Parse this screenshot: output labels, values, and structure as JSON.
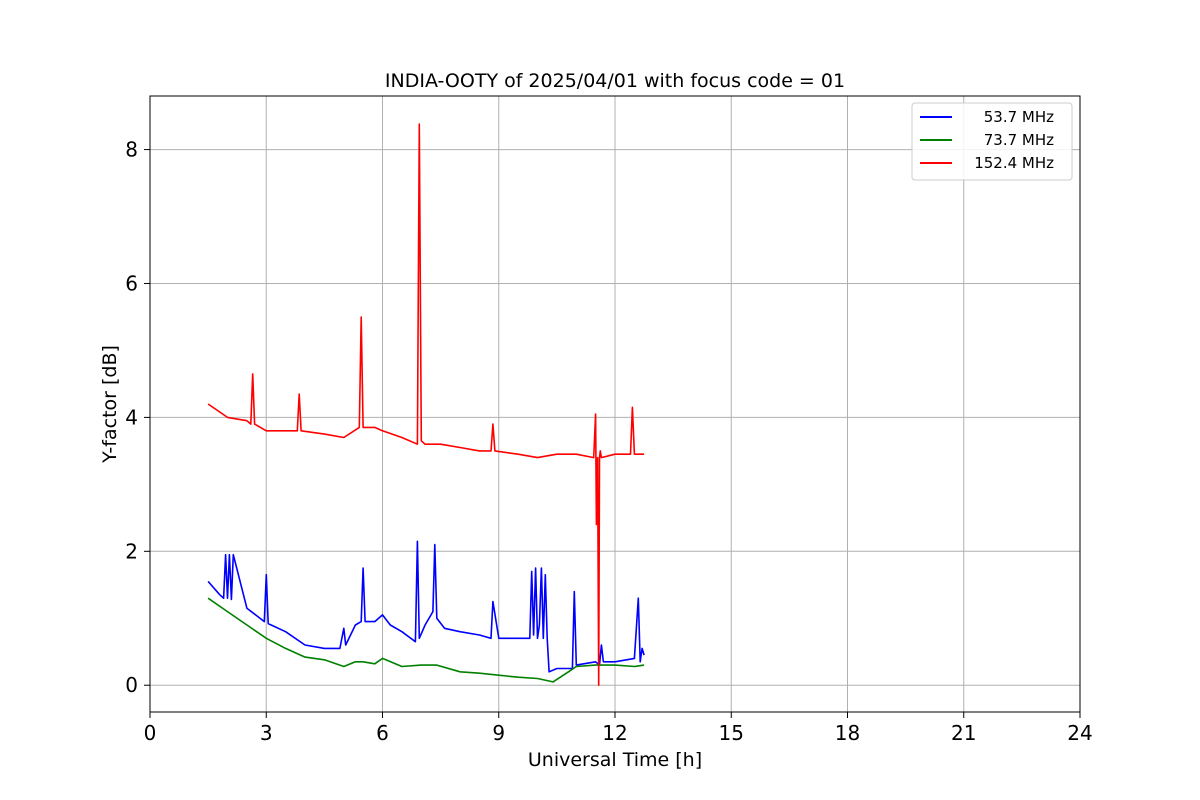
{
  "chart_data": {
    "type": "line",
    "title": "INDIA-OOTY of 2025/04/01 with focus code = 01",
    "xlabel": "Universal Time [h]",
    "ylabel": "Y-factor [dB]",
    "xlim": [
      0,
      24
    ],
    "ylim": [
      -0.4,
      8.8
    ],
    "xticks": [
      0,
      3,
      6,
      9,
      12,
      15,
      18,
      21,
      24
    ],
    "yticks": [
      0,
      2,
      4,
      6,
      8
    ],
    "grid": true,
    "legend_position": "top-right",
    "series": [
      {
        "name": "53.7 MHz",
        "color": "#0000ff",
        "x": [
          1.5,
          1.8,
          1.9,
          1.95,
          2.0,
          2.05,
          2.1,
          2.15,
          2.5,
          2.95,
          3.0,
          3.05,
          3.5,
          4.0,
          4.5,
          4.9,
          5.0,
          5.05,
          5.3,
          5.45,
          5.5,
          5.55,
          5.8,
          6.0,
          6.2,
          6.5,
          6.85,
          6.9,
          6.95,
          7.1,
          7.3,
          7.35,
          7.4,
          7.6,
          8.0,
          8.5,
          8.8,
          8.85,
          9.0,
          9.5,
          9.8,
          9.85,
          9.9,
          9.95,
          10.0,
          10.05,
          10.1,
          10.15,
          10.2,
          10.25,
          10.3,
          10.5,
          10.9,
          10.95,
          11.0,
          11.5,
          11.6,
          11.65,
          11.7,
          12.0,
          12.5,
          12.6,
          12.65,
          12.7,
          12.75
        ],
        "y": [
          1.55,
          1.35,
          1.3,
          1.95,
          1.3,
          1.95,
          1.28,
          1.95,
          1.15,
          0.95,
          1.65,
          0.92,
          0.8,
          0.6,
          0.55,
          0.55,
          0.85,
          0.6,
          0.9,
          0.95,
          1.75,
          0.95,
          0.95,
          1.05,
          0.9,
          0.8,
          0.65,
          2.15,
          0.7,
          0.9,
          1.1,
          2.1,
          1.0,
          0.85,
          0.8,
          0.75,
          0.7,
          1.25,
          0.7,
          0.7,
          0.7,
          1.7,
          0.75,
          1.75,
          0.7,
          0.9,
          1.75,
          0.7,
          1.65,
          0.7,
          0.2,
          0.25,
          0.25,
          1.4,
          0.3,
          0.35,
          0.3,
          0.6,
          0.35,
          0.35,
          0.4,
          1.3,
          0.35,
          0.55,
          0.45
        ]
      },
      {
        "name": "73.7 MHz",
        "color": "#008000",
        "x": [
          1.5,
          2.0,
          2.5,
          3.0,
          3.5,
          4.0,
          4.5,
          5.0,
          5.3,
          5.5,
          5.8,
          6.0,
          6.5,
          7.0,
          7.4,
          8.0,
          8.5,
          9.0,
          9.5,
          10.0,
          10.4,
          10.8,
          11.0,
          11.5,
          12.0,
          12.5,
          12.75
        ],
        "y": [
          1.3,
          1.1,
          0.9,
          0.7,
          0.55,
          0.42,
          0.38,
          0.28,
          0.35,
          0.35,
          0.32,
          0.4,
          0.28,
          0.3,
          0.3,
          0.2,
          0.18,
          0.15,
          0.12,
          0.1,
          0.05,
          0.2,
          0.28,
          0.3,
          0.3,
          0.28,
          0.3
        ]
      },
      {
        "name": "152.4 MHz",
        "color": "#ff0000",
        "x": [
          1.5,
          2.0,
          2.5,
          2.6,
          2.65,
          2.7,
          3.0,
          3.8,
          3.85,
          3.9,
          4.5,
          5.0,
          5.4,
          5.45,
          5.5,
          5.8,
          6.0,
          6.5,
          6.9,
          6.95,
          7.0,
          7.1,
          7.5,
          8.0,
          8.5,
          8.8,
          8.85,
          8.9,
          9.5,
          10.0,
          10.5,
          11.0,
          11.45,
          11.5,
          11.52,
          11.55,
          11.58,
          11.6,
          11.62,
          11.65,
          12.0,
          12.4,
          12.45,
          12.5,
          12.75
        ],
        "y": [
          4.2,
          4.0,
          3.95,
          3.9,
          4.65,
          3.9,
          3.8,
          3.8,
          4.35,
          3.8,
          3.75,
          3.7,
          3.85,
          5.5,
          3.85,
          3.85,
          3.8,
          3.7,
          3.6,
          8.38,
          3.65,
          3.6,
          3.6,
          3.55,
          3.5,
          3.5,
          3.9,
          3.5,
          3.45,
          3.4,
          3.45,
          3.45,
          3.4,
          4.05,
          2.4,
          3.4,
          0.0,
          3.4,
          3.5,
          3.4,
          3.45,
          3.45,
          4.15,
          3.45,
          3.45
        ]
      }
    ]
  }
}
